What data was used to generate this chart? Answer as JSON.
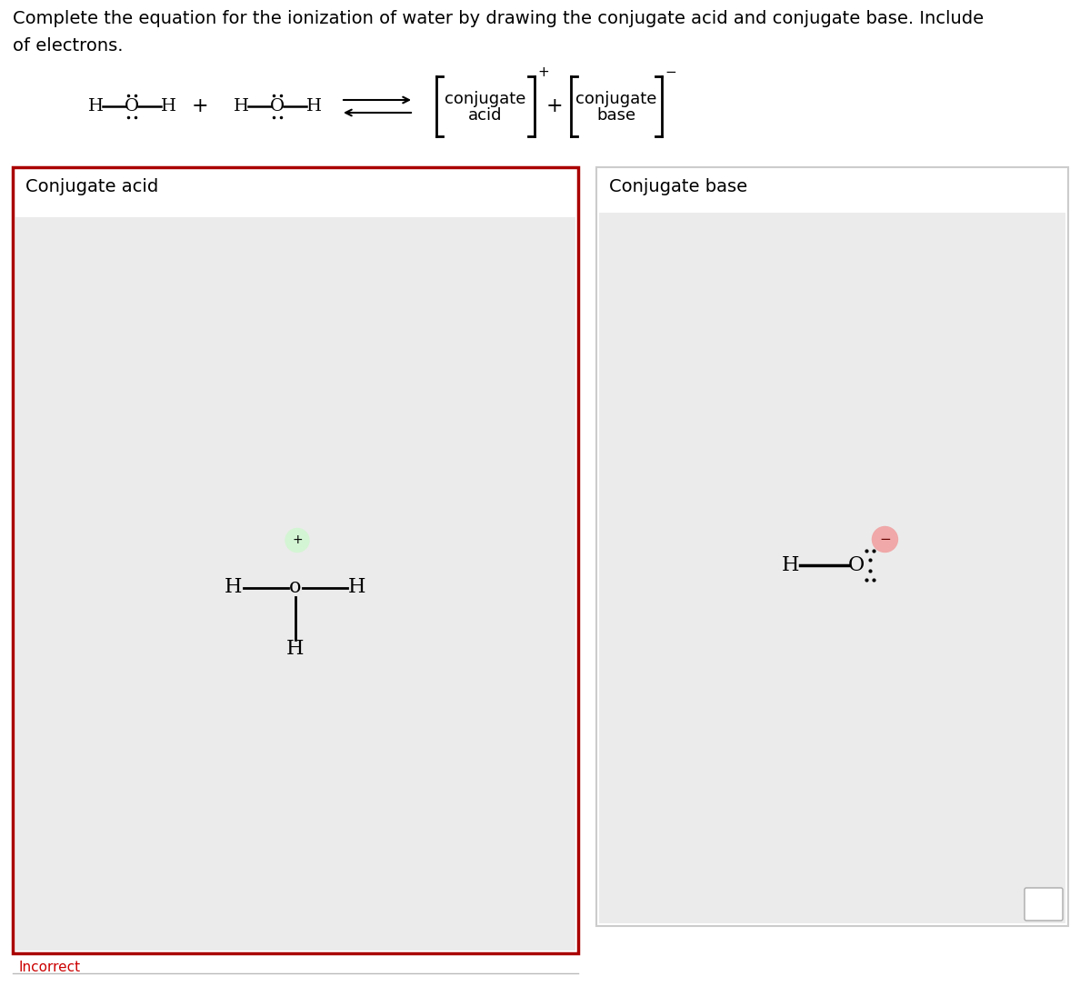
{
  "bg_color": "#ffffff",
  "panel_bg": "#ebebeb",
  "left_panel_title": "Conjugate acid",
  "right_panel_title": "Conjugate base",
  "incorrect_text": "Incorrect",
  "incorrect_color": "#cc0000",
  "left_border_color": "#aa0000",
  "right_border_color": "#cccccc",
  "title_line1": "Complete the equation for the ionization of water by drawing the conjugate acid and conjugate base. Include",
  "title_line2": "of electrons."
}
